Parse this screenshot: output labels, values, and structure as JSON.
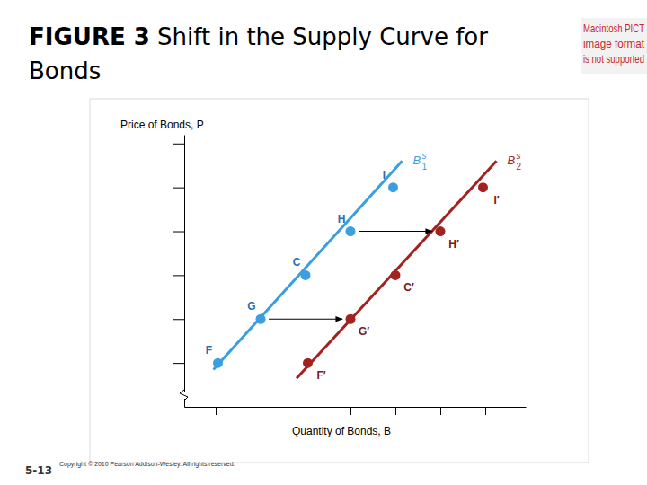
{
  "chart_data": {
    "type": "line",
    "figure_label": "FIGURE 3",
    "title": "Shift in the Supply Curve for Bonds",
    "x_label": "Quantity of Bonds, B",
    "y_label": "Price of Bonds, P",
    "xlim": [
      0.3,
      7.9
    ],
    "ylim": [
      0,
      6.2
    ],
    "xticks": [
      1,
      2,
      3,
      4,
      5,
      6,
      7
    ],
    "yticks": [
      1,
      2,
      3,
      4,
      5,
      6
    ],
    "tick_labels": false,
    "grid": false,
    "series": [
      {
        "name": "B",
        "name_sup": "s",
        "name_sub": "1",
        "color": "#3a9ee0",
        "marker": "circle",
        "line_style": "solid",
        "x": [
          0.95,
          5.15
        ],
        "values": [
          0.85,
          5.6
        ],
        "points": [
          {
            "label": "F",
            "x": 1.05,
            "y": 1
          },
          {
            "label": "G",
            "x": 2,
            "y": 2
          },
          {
            "label": "C",
            "x": 3,
            "y": 3
          },
          {
            "label": "H",
            "x": 4,
            "y": 4
          },
          {
            "label": "I",
            "x": 4.95,
            "y": 5
          }
        ]
      },
      {
        "name": "B",
        "name_sup": "s",
        "name_sub": "2",
        "color": "#a3221f",
        "marker": "circle",
        "line_style": "solid",
        "x": [
          2.8,
          7.25
        ],
        "values": [
          0.65,
          5.6
        ],
        "points": [
          {
            "label": "F′",
            "x": 3.05,
            "y": 1
          },
          {
            "label": "G′",
            "x": 4,
            "y": 2
          },
          {
            "label": "C′",
            "x": 5,
            "y": 3
          },
          {
            "label": "H′",
            "x": 6,
            "y": 4
          },
          {
            "label": "I′",
            "x": 6.95,
            "y": 5
          }
        ]
      }
    ],
    "arrows": [
      {
        "from": "G",
        "to": "G′"
      },
      {
        "from": "H",
        "to": "H′"
      }
    ]
  },
  "slide": {
    "image_placeholder": [
      "Macintosh PICT",
      "image format",
      "is not supported"
    ],
    "copyright": "Copyright © 2010 Pearson Addison-Wesley. All rights reserved.",
    "slide_number": "5-13"
  }
}
